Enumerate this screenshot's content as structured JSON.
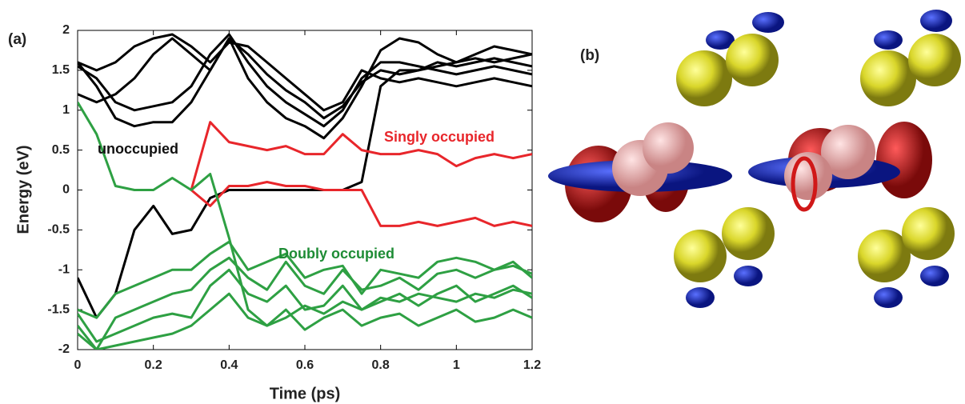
{
  "panel_labels": [
    "(a)",
    "(b)"
  ],
  "chart_data": {
    "type": "line",
    "xlabel": "Time (ps)",
    "ylabel": "Energy (eV)",
    "annotations": [
      "unoccupied",
      "Singly occupied",
      "Doubly occupied"
    ],
    "x": [
      0,
      0.05,
      0.1,
      0.15,
      0.2,
      0.25,
      0.3,
      0.35,
      0.4,
      0.45,
      0.5,
      0.55,
      0.6,
      0.65,
      0.7,
      0.75,
      0.8,
      0.85,
      0.9,
      0.95,
      1,
      1.05,
      1.1,
      1.15,
      1.2
    ],
    "xlim": [
      0,
      1.2
    ],
    "xticks": [
      0,
      0.2,
      0.4,
      0.6,
      0.8,
      1,
      1.2
    ],
    "ylim": [
      -2,
      2
    ],
    "yticks": [
      -2,
      -1.5,
      -1,
      -0.5,
      0,
      0.5,
      1,
      1.5,
      2
    ],
    "series": [
      {
        "color": "#000000",
        "values": [
          -1.1,
          -1.6,
          -1.3,
          -0.5,
          -0.2,
          -0.55,
          -0.5,
          -0.1,
          0,
          0,
          0,
          0,
          0,
          0,
          0,
          0.1,
          1.3,
          1.5,
          1.5,
          1.55,
          1.6,
          1.65,
          1.6,
          1.65,
          1.7
        ]
      },
      {
        "color": "#000000",
        "values": [
          1.6,
          1.3,
          0.9,
          0.8,
          0.85,
          0.85,
          1.1,
          1.5,
          1.9,
          1.4,
          1.1,
          0.9,
          0.8,
          0.65,
          0.9,
          1.3,
          1.75,
          1.9,
          1.85,
          1.7,
          1.6,
          1.7,
          1.8,
          1.75,
          1.7
        ]
      },
      {
        "color": "#000000",
        "values": [
          1.55,
          1.4,
          1.1,
          1.0,
          1.05,
          1.1,
          1.3,
          1.7,
          1.95,
          1.6,
          1.3,
          1.1,
          0.95,
          0.8,
          1.0,
          1.4,
          1.6,
          1.6,
          1.55,
          1.5,
          1.45,
          1.5,
          1.55,
          1.5,
          1.45
        ]
      },
      {
        "color": "#000000",
        "values": [
          1.6,
          1.5,
          1.6,
          1.8,
          1.9,
          1.95,
          1.8,
          1.6,
          1.85,
          1.8,
          1.6,
          1.4,
          1.2,
          1.0,
          1.1,
          1.5,
          1.4,
          1.35,
          1.4,
          1.35,
          1.3,
          1.35,
          1.4,
          1.35,
          1.3
        ]
      },
      {
        "color": "#000000",
        "values": [
          1.2,
          1.1,
          1.2,
          1.4,
          1.7,
          1.9,
          1.7,
          1.5,
          1.9,
          1.7,
          1.45,
          1.25,
          1.1,
          0.9,
          1.05,
          1.35,
          1.5,
          1.45,
          1.5,
          1.6,
          1.55,
          1.6,
          1.65,
          1.6,
          1.55
        ]
      },
      {
        "color": "#e8262b",
        "values": [
          null,
          null,
          null,
          null,
          null,
          null,
          0,
          0.85,
          0.6,
          0.55,
          0.5,
          0.55,
          0.45,
          0.45,
          0.7,
          0.5,
          0.45,
          0.45,
          0.5,
          0.45,
          0.3,
          0.4,
          0.45,
          0.4,
          0.45
        ]
      },
      {
        "color": "#e8262b",
        "values": [
          null,
          null,
          null,
          null,
          null,
          null,
          0,
          -0.2,
          0.05,
          0.05,
          0.1,
          0.05,
          0.05,
          0,
          0,
          0,
          -0.45,
          -0.45,
          -0.4,
          -0.45,
          -0.4,
          -0.35,
          -0.45,
          -0.4,
          -0.45
        ]
      },
      {
        "color": "#2ea043",
        "values": [
          1.1,
          0.7,
          0.05,
          0,
          0,
          0.15,
          0,
          0.2,
          -0.6,
          -1.5,
          -1.7,
          -1.6,
          -1.45,
          -1.55,
          -1.4,
          -1.5,
          -1.35,
          -1.4,
          -1.3,
          -1.35,
          -1.4,
          -1.3,
          -1.35,
          -1.25,
          -1.3
        ]
      },
      {
        "color": "#2ea043",
        "values": [
          -1.5,
          -1.6,
          -1.3,
          -1.2,
          -1.1,
          -1.0,
          -1.0,
          -0.8,
          -0.65,
          -1.0,
          -0.9,
          -0.8,
          -1.1,
          -1.0,
          -0.95,
          -1.3,
          -1.0,
          -1.05,
          -1.1,
          -0.9,
          -0.85,
          -0.9,
          -1.0,
          -0.9,
          -1.1
        ]
      },
      {
        "color": "#2ea043",
        "values": [
          -1.7,
          -2.0,
          -1.6,
          -1.5,
          -1.4,
          -1.3,
          -1.25,
          -1.0,
          -0.85,
          -1.1,
          -1.25,
          -0.9,
          -1.2,
          -1.3,
          -1.0,
          -1.25,
          -1.2,
          -1.1,
          -1.25,
          -1.05,
          -1.0,
          -1.1,
          -1.0,
          -0.95,
          -1.05
        ]
      },
      {
        "color": "#2ea043",
        "values": [
          -1.55,
          -1.9,
          -1.8,
          -1.7,
          -1.6,
          -1.55,
          -1.6,
          -1.2,
          -1.0,
          -1.3,
          -1.4,
          -1.2,
          -1.5,
          -1.45,
          -1.2,
          -1.5,
          -1.4,
          -1.3,
          -1.45,
          -1.3,
          -1.2,
          -1.4,
          -1.3,
          -1.2,
          -1.35
        ]
      },
      {
        "color": "#2ea043",
        "values": [
          -1.8,
          -2.0,
          -1.95,
          -1.9,
          -1.85,
          -1.8,
          -1.7,
          -1.5,
          -1.3,
          -1.6,
          -1.7,
          -1.5,
          -1.75,
          -1.6,
          -1.5,
          -1.7,
          -1.6,
          -1.55,
          -1.7,
          -1.6,
          -1.5,
          -1.65,
          -1.6,
          -1.5,
          -1.6
        ]
      }
    ]
  }
}
